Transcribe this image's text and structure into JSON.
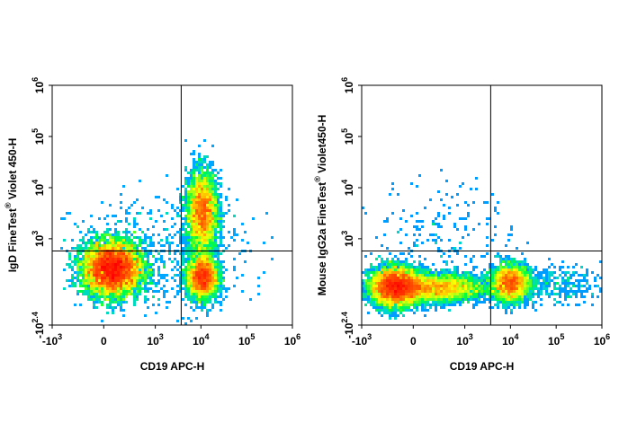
{
  "chart_data": [
    {
      "type": "scatter",
      "subtype": "flow-cytometry-density-plot",
      "title": "",
      "xlabel": "CD19 APC-H",
      "ylabel": {
        "prefix": "IgD  FineTest",
        "sup": "®",
        "suffix": "  Violet 450-H"
      },
      "x_scale": "biexponential",
      "y_scale": "biexponential",
      "xlim": [
        -1000,
        1000000
      ],
      "ylim": [
        -251,
        1000000
      ],
      "x_ticks": [
        {
          "base": "-10",
          "exp": "3",
          "value": -1000
        },
        {
          "base": "0",
          "exp": "",
          "value": 0
        },
        {
          "base": "10",
          "exp": "3",
          "value": 1000
        },
        {
          "base": "10",
          "exp": "4",
          "value": 10000
        },
        {
          "base": "10",
          "exp": "5",
          "value": 100000
        },
        {
          "base": "10",
          "exp": "6",
          "value": 1000000
        }
      ],
      "y_ticks": [
        {
          "base": "-10",
          "exp": "2.4",
          "value": -251
        },
        {
          "base": "10",
          "exp": "3",
          "value": 1000
        },
        {
          "base": "10",
          "exp": "4",
          "value": 10000
        },
        {
          "base": "10",
          "exp": "5",
          "value": 100000
        },
        {
          "base": "10",
          "exp": "6",
          "value": 1000000
        }
      ],
      "gate_x": 3700,
      "gate_y": 570,
      "populations": [
        {
          "x_center": 500,
          "y_center": 0,
          "density": "high"
        },
        {
          "x_center": 15000,
          "y_center": 2000,
          "density": "medium"
        },
        {
          "x_center": 15000,
          "y_center": -30,
          "density": "medium"
        }
      ]
    },
    {
      "type": "scatter",
      "subtype": "flow-cytometry-density-plot",
      "title": "",
      "xlabel": "CD19 APC-H",
      "ylabel": {
        "prefix": "Mouse IgG2a  FineTest",
        "sup": "®",
        "suffix": "  Violet450-H"
      },
      "x_scale": "biexponential",
      "y_scale": "biexponential",
      "xlim": [
        -1000,
        1000000
      ],
      "ylim": [
        -251,
        1000000
      ],
      "x_ticks": [
        {
          "base": "-10",
          "exp": "3",
          "value": -1000
        },
        {
          "base": "0",
          "exp": "",
          "value": 0
        },
        {
          "base": "10",
          "exp": "3",
          "value": 1000
        },
        {
          "base": "10",
          "exp": "4",
          "value": 10000
        },
        {
          "base": "10",
          "exp": "5",
          "value": 100000
        },
        {
          "base": "10",
          "exp": "6",
          "value": 1000000
        }
      ],
      "y_ticks": [
        {
          "base": "-10",
          "exp": "2.4",
          "value": -251
        },
        {
          "base": "10",
          "exp": "3",
          "value": 1000
        },
        {
          "base": "10",
          "exp": "4",
          "value": 10000
        },
        {
          "base": "10",
          "exp": "5",
          "value": 100000
        },
        {
          "base": "10",
          "exp": "6",
          "value": 1000000
        }
      ],
      "gate_x": 3700,
      "gate_y": 570,
      "populations": [
        {
          "x_center": 0,
          "y_center": -30,
          "density": "high"
        },
        {
          "x_center": 15000,
          "y_center": -30,
          "density": "medium"
        },
        {
          "x_center": 800,
          "y_center": -40,
          "density": "low"
        }
      ]
    }
  ],
  "colors": {
    "density_low": "#0000ff",
    "density_mid": "#00ff00",
    "density_high": "#ff0000",
    "gate_line": "#000000",
    "frame": "#000000"
  }
}
